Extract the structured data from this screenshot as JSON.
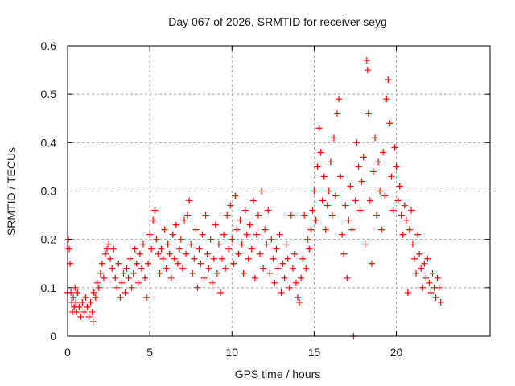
{
  "chart_data": {
    "type": "scatter",
    "title": "Day 067 of 2026, SRMTID for receiver seyg",
    "xlabel": "GPS time / hours",
    "ylabel": "SRMTID / TECUs",
    "xlim": [
      0,
      25.7
    ],
    "ylim": [
      0,
      0.6
    ],
    "xticks": [
      0,
      5,
      10,
      15,
      20
    ],
    "xtick_labels": [
      "0",
      "5",
      "10",
      "15",
      "20"
    ],
    "yticks": [
      0,
      0.1,
      0.2,
      0.3,
      0.4,
      0.5,
      0.6
    ],
    "ytick_labels": [
      "0",
      "0.1",
      "0.2",
      "0.3",
      "0.4",
      "0.5",
      "0.6"
    ],
    "grid": true,
    "legend": "none",
    "marker": "plus",
    "series": [
      {
        "name": "SRMTID",
        "color": "#ff0000",
        "points": [
          [
            0.0,
            0.09
          ],
          [
            0.05,
            0.2
          ],
          [
            0.1,
            0.18
          ],
          [
            0.15,
            0.15
          ],
          [
            0.2,
            0.09
          ],
          [
            0.25,
            0.07
          ],
          [
            0.3,
            0.05
          ],
          [
            0.35,
            0.08
          ],
          [
            0.4,
            0.06
          ],
          [
            0.45,
            0.1
          ],
          [
            0.5,
            0.07
          ],
          [
            0.55,
            0.05
          ],
          [
            0.6,
            0.09
          ],
          [
            0.7,
            0.06
          ],
          [
            0.8,
            0.04
          ],
          [
            0.9,
            0.07
          ],
          [
            1.0,
            0.05
          ],
          [
            1.1,
            0.08
          ],
          [
            1.2,
            0.06
          ],
          [
            1.3,
            0.04
          ],
          [
            1.4,
            0.07
          ],
          [
            1.5,
            0.05
          ],
          [
            1.55,
            0.03
          ],
          [
            1.6,
            0.09
          ],
          [
            1.7,
            0.08
          ],
          [
            1.8,
            0.11
          ],
          [
            1.9,
            0.1
          ],
          [
            2.0,
            0.13
          ],
          [
            2.1,
            0.15
          ],
          [
            2.2,
            0.12
          ],
          [
            2.3,
            0.17
          ],
          [
            2.4,
            0.18
          ],
          [
            2.5,
            0.19
          ],
          [
            2.6,
            0.16
          ],
          [
            2.7,
            0.14
          ],
          [
            2.8,
            0.18
          ],
          [
            2.9,
            0.12
          ],
          [
            3.0,
            0.1
          ],
          [
            3.1,
            0.15
          ],
          [
            3.2,
            0.08
          ],
          [
            3.3,
            0.11
          ],
          [
            3.4,
            0.13
          ],
          [
            3.5,
            0.09
          ],
          [
            3.6,
            0.14
          ],
          [
            3.7,
            0.12
          ],
          [
            3.8,
            0.16
          ],
          [
            3.9,
            0.1
          ],
          [
            4.0,
            0.13
          ],
          [
            4.1,
            0.18
          ],
          [
            4.2,
            0.15
          ],
          [
            4.3,
            0.11
          ],
          [
            4.4,
            0.17
          ],
          [
            4.5,
            0.14
          ],
          [
            4.6,
            0.19
          ],
          [
            4.7,
            0.12
          ],
          [
            4.8,
            0.08
          ],
          [
            4.9,
            0.15
          ],
          [
            5.0,
            0.21
          ],
          [
            5.1,
            0.18
          ],
          [
            5.2,
            0.24
          ],
          [
            5.3,
            0.26
          ],
          [
            5.4,
            0.2
          ],
          [
            5.5,
            0.17
          ],
          [
            5.6,
            0.13
          ],
          [
            5.7,
            0.18
          ],
          [
            5.8,
            0.16
          ],
          [
            5.9,
            0.22
          ],
          [
            6.0,
            0.14
          ],
          [
            6.1,
            0.19
          ],
          [
            6.2,
            0.17
          ],
          [
            6.3,
            0.12
          ],
          [
            6.4,
            0.21
          ],
          [
            6.5,
            0.16
          ],
          [
            6.6,
            0.23
          ],
          [
            6.7,
            0.15
          ],
          [
            6.8,
            0.18
          ],
          [
            6.9,
            0.2
          ],
          [
            7.0,
            0.14
          ],
          [
            7.1,
            0.24
          ],
          [
            7.2,
            0.17
          ],
          [
            7.3,
            0.25
          ],
          [
            7.4,
            0.28
          ],
          [
            7.5,
            0.19
          ],
          [
            7.6,
            0.13
          ],
          [
            7.7,
            0.16
          ],
          [
            7.8,
            0.22
          ],
          [
            7.9,
            0.1
          ],
          [
            8.0,
            0.18
          ],
          [
            8.1,
            0.15
          ],
          [
            8.2,
            0.21
          ],
          [
            8.3,
            0.12
          ],
          [
            8.4,
            0.25
          ],
          [
            8.5,
            0.17
          ],
          [
            8.6,
            0.14
          ],
          [
            8.7,
            0.2
          ],
          [
            8.8,
            0.11
          ],
          [
            8.9,
            0.16
          ],
          [
            9.0,
            0.23
          ],
          [
            9.1,
            0.13
          ],
          [
            9.2,
            0.19
          ],
          [
            9.3,
            0.09
          ],
          [
            9.4,
            0.16
          ],
          [
            9.5,
            0.21
          ],
          [
            9.6,
            0.14
          ],
          [
            9.7,
            0.25
          ],
          [
            9.8,
            0.18
          ],
          [
            9.9,
            0.27
          ],
          [
            10.0,
            0.2
          ],
          [
            10.1,
            0.15
          ],
          [
            10.2,
            0.29
          ],
          [
            10.3,
            0.22
          ],
          [
            10.4,
            0.17
          ],
          [
            10.5,
            0.24
          ],
          [
            10.6,
            0.19
          ],
          [
            10.7,
            0.13
          ],
          [
            10.8,
            0.26
          ],
          [
            10.9,
            0.21
          ],
          [
            11.0,
            0.16
          ],
          [
            11.1,
            0.23
          ],
          [
            11.2,
            0.18
          ],
          [
            11.3,
            0.28
          ],
          [
            11.4,
            0.12
          ],
          [
            11.5,
            0.21
          ],
          [
            11.6,
            0.25
          ],
          [
            11.7,
            0.17
          ],
          [
            11.8,
            0.3
          ],
          [
            11.9,
            0.14
          ],
          [
            12.0,
            0.22
          ],
          [
            12.1,
            0.19
          ],
          [
            12.2,
            0.26
          ],
          [
            12.3,
            0.13
          ],
          [
            12.4,
            0.2
          ],
          [
            12.5,
            0.16
          ],
          [
            12.6,
            0.11
          ],
          [
            12.7,
            0.18
          ],
          [
            12.8,
            0.14
          ],
          [
            12.9,
            0.21
          ],
          [
            13.0,
            0.09
          ],
          [
            13.1,
            0.15
          ],
          [
            13.2,
            0.12
          ],
          [
            13.3,
            0.19
          ],
          [
            13.4,
            0.16
          ],
          [
            13.5,
            0.1
          ],
          [
            13.6,
            0.25
          ],
          [
            13.7,
            0.14
          ],
          [
            13.8,
            0.17
          ],
          [
            13.9,
            0.11
          ],
          [
            14.0,
            0.08
          ],
          [
            14.1,
            0.07
          ],
          [
            14.2,
            0.12
          ],
          [
            14.3,
            0.16
          ],
          [
            14.4,
            0.25
          ],
          [
            14.5,
            0.14
          ],
          [
            14.6,
            0.2
          ],
          [
            14.7,
            0.18
          ],
          [
            14.8,
            0.22
          ],
          [
            14.9,
            0.26
          ],
          [
            15.0,
            0.3
          ],
          [
            15.1,
            0.24
          ],
          [
            15.2,
            0.35
          ],
          [
            15.3,
            0.43
          ],
          [
            15.4,
            0.38
          ],
          [
            15.5,
            0.28
          ],
          [
            15.6,
            0.33
          ],
          [
            15.7,
            0.22
          ],
          [
            15.8,
            0.27
          ],
          [
            15.9,
            0.3
          ],
          [
            16.0,
            0.36
          ],
          [
            16.1,
            0.25
          ],
          [
            16.2,
            0.41
          ],
          [
            16.3,
            0.29
          ],
          [
            16.4,
            0.46
          ],
          [
            16.5,
            0.49
          ],
          [
            16.6,
            0.33
          ],
          [
            16.7,
            0.21
          ],
          [
            16.8,
            0.17
          ],
          [
            16.9,
            0.27
          ],
          [
            17.0,
            0.12
          ],
          [
            17.1,
            0.24
          ],
          [
            17.2,
            0.31
          ],
          [
            17.3,
            0.22
          ],
          [
            17.4,
            0.0
          ],
          [
            17.5,
            0.28
          ],
          [
            17.6,
            0.4
          ],
          [
            17.7,
            0.35
          ],
          [
            17.8,
            0.26
          ],
          [
            17.9,
            0.32
          ],
          [
            18.0,
            0.37
          ],
          [
            18.1,
            0.19
          ],
          [
            18.2,
            0.57
          ],
          [
            18.25,
            0.55
          ],
          [
            18.3,
            0.46
          ],
          [
            18.4,
            0.28
          ],
          [
            18.5,
            0.15
          ],
          [
            18.6,
            0.34
          ],
          [
            18.7,
            0.41
          ],
          [
            18.8,
            0.25
          ],
          [
            18.9,
            0.36
          ],
          [
            19.0,
            0.3
          ],
          [
            19.1,
            0.22
          ],
          [
            19.2,
            0.38
          ],
          [
            19.3,
            0.29
          ],
          [
            19.4,
            0.49
          ],
          [
            19.5,
            0.53
          ],
          [
            19.6,
            0.44
          ],
          [
            19.7,
            0.33
          ],
          [
            19.8,
            0.26
          ],
          [
            19.9,
            0.39
          ],
          [
            20.0,
            0.35
          ],
          [
            20.1,
            0.28
          ],
          [
            20.2,
            0.31
          ],
          [
            20.3,
            0.25
          ],
          [
            20.4,
            0.21
          ],
          [
            20.5,
            0.27
          ],
          [
            20.6,
            0.24
          ],
          [
            20.7,
            0.09
          ],
          [
            20.8,
            0.22
          ],
          [
            20.9,
            0.26
          ],
          [
            21.0,
            0.19
          ],
          [
            21.1,
            0.16
          ],
          [
            21.2,
            0.13
          ],
          [
            21.3,
            0.21
          ],
          [
            21.4,
            0.17
          ],
          [
            21.5,
            0.14
          ],
          [
            21.6,
            0.1
          ],
          [
            21.7,
            0.15
          ],
          [
            21.8,
            0.12
          ],
          [
            21.9,
            0.16
          ],
          [
            22.0,
            0.11
          ],
          [
            22.1,
            0.09
          ],
          [
            22.2,
            0.13
          ],
          [
            22.3,
            0.1
          ],
          [
            22.4,
            0.08
          ],
          [
            22.5,
            0.12
          ],
          [
            22.6,
            0.1
          ],
          [
            22.7,
            0.07
          ]
        ]
      }
    ]
  }
}
